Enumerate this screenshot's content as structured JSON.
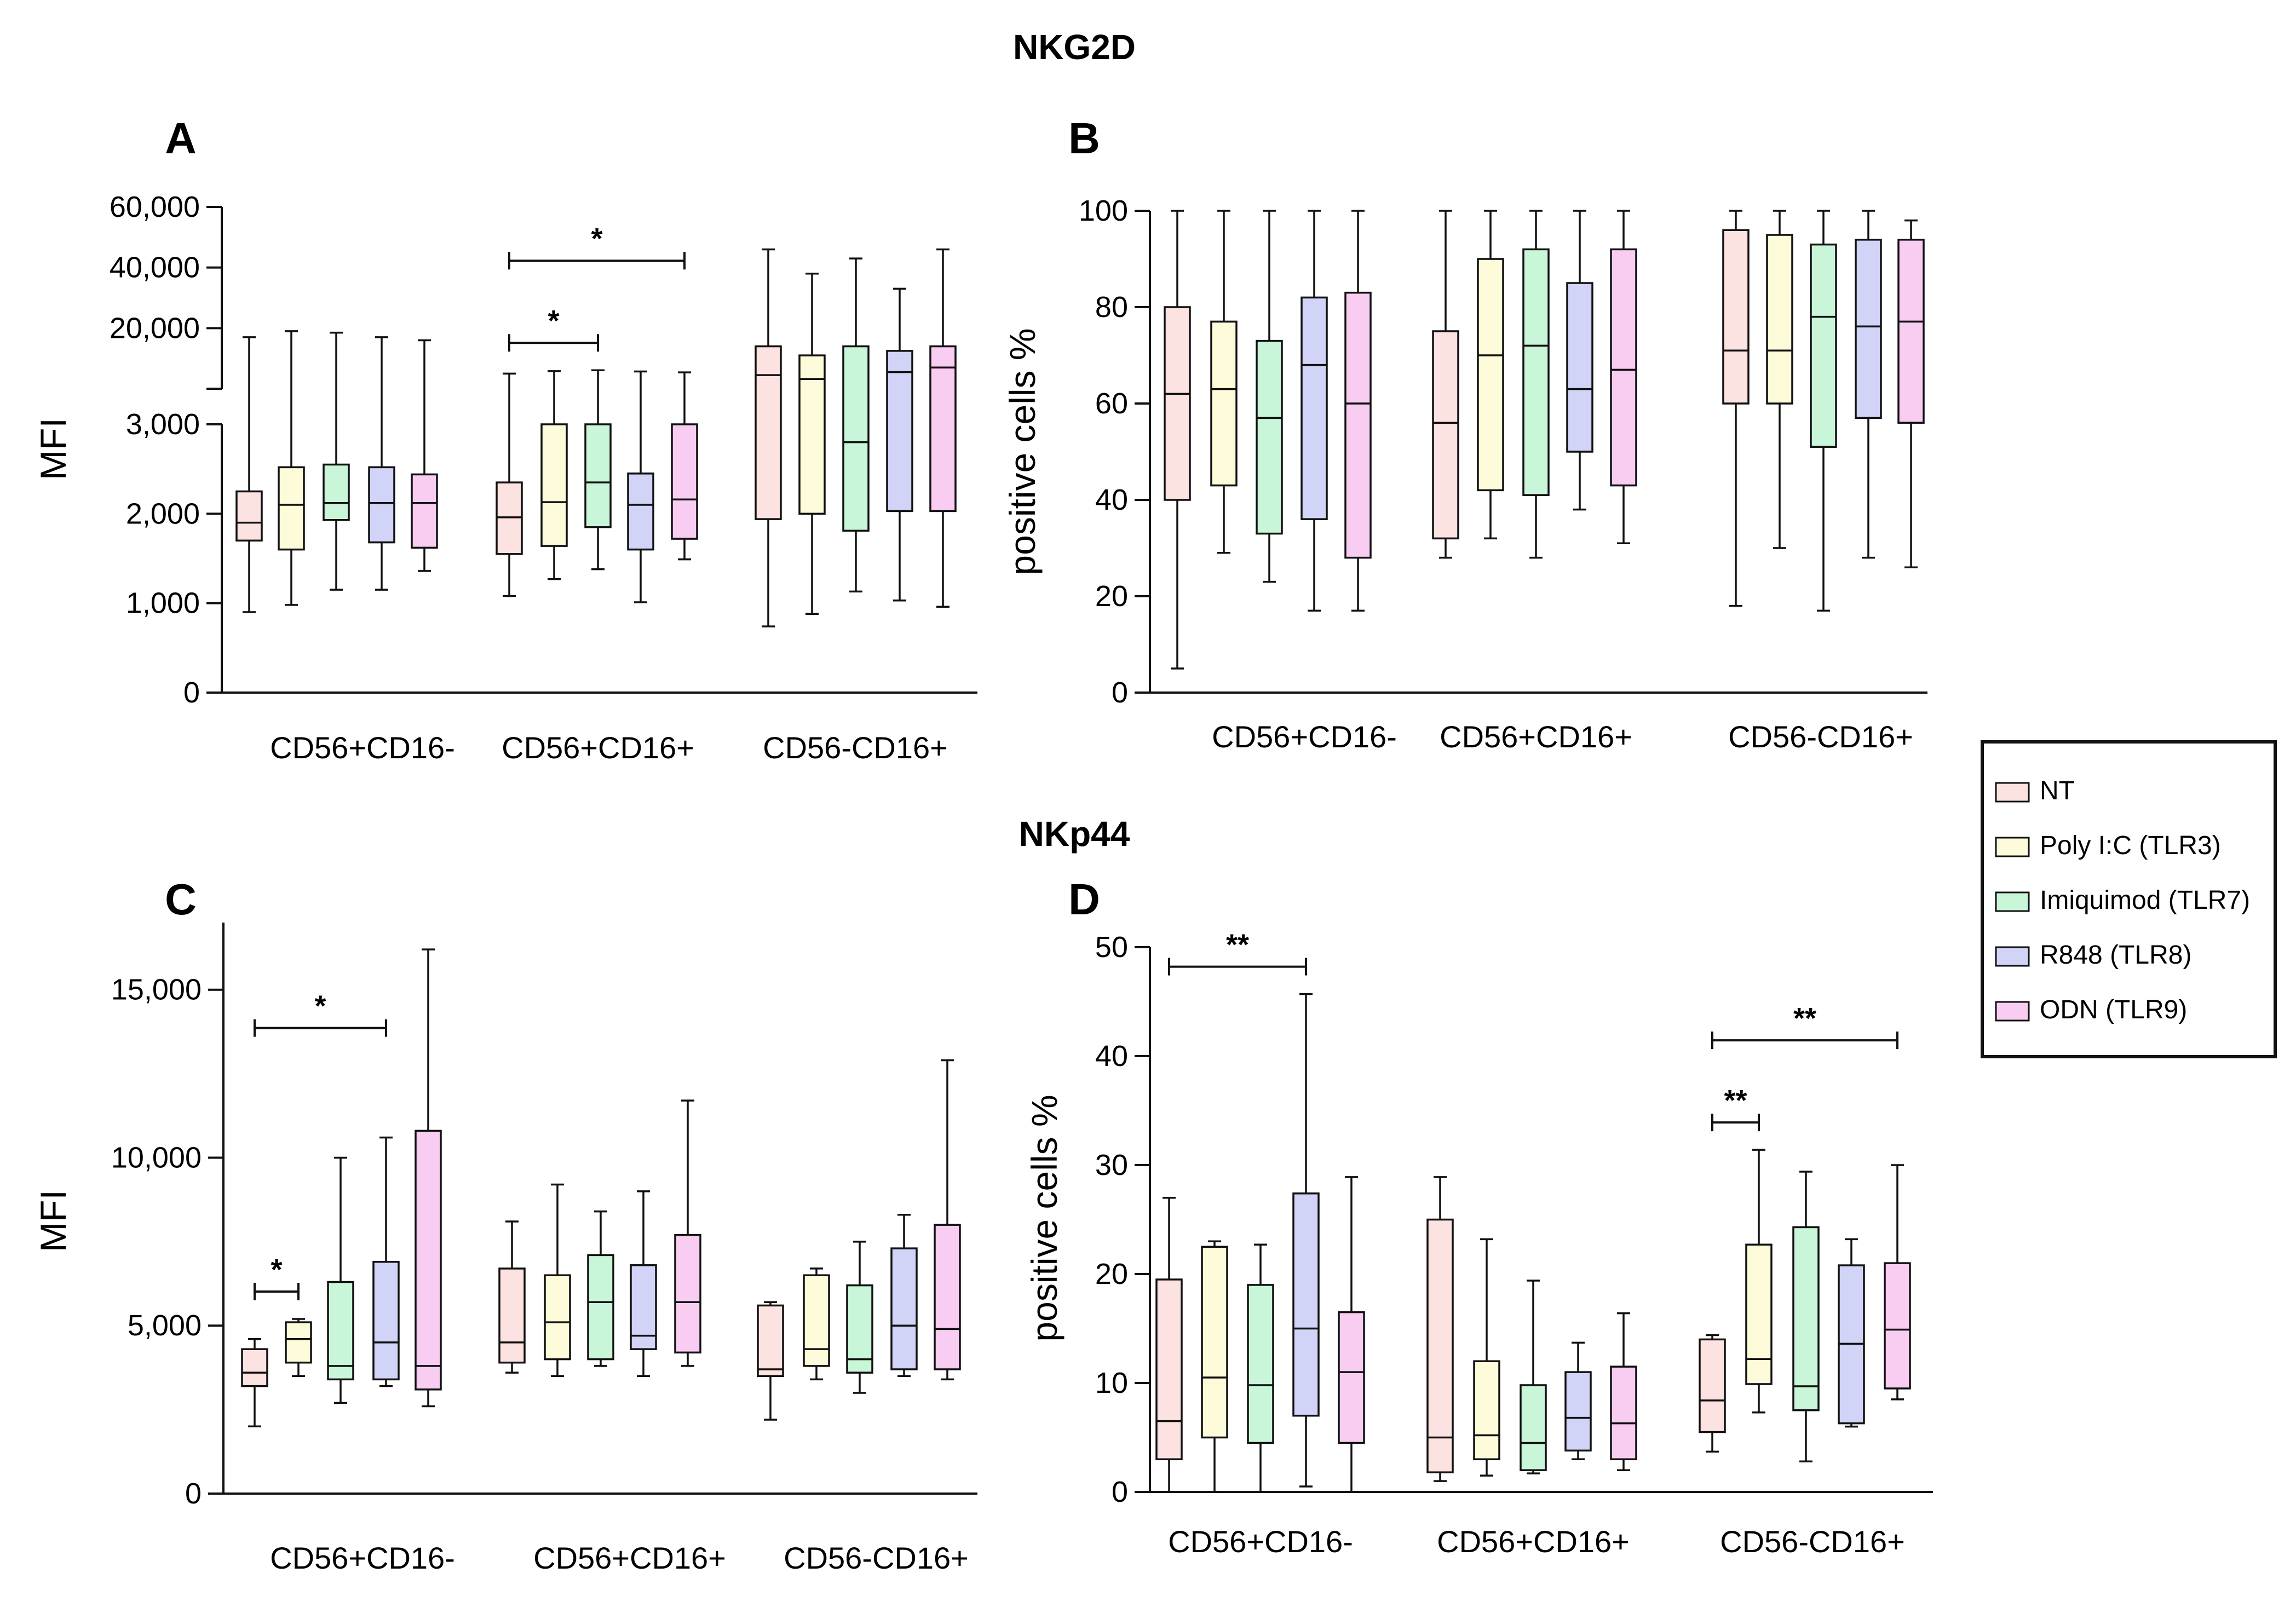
{
  "figure": {
    "titles": [
      {
        "id": "title-nkg2d",
        "text": "NKG2D"
      },
      {
        "id": "title-nkp44",
        "text": "NKp44"
      }
    ],
    "colors": {
      "NT": "#fde2e2",
      "Poly I:C (TLR3)": "#fdfbd9",
      "Imiquimod (TLR7)": "#c9f5d9",
      "R848 (TLR8)": "#d1d3f7",
      "ODN (TLR9)": "#f8cdf1"
    },
    "legend": [
      "NT",
      "Poly I:C (TLR3)",
      "Imiquimod (TLR7)",
      "R848 (TLR8)",
      "ODN (TLR9)"
    ]
  },
  "chart_data": [
    {
      "panel": "A",
      "type": "boxplot",
      "title": "NKG2D",
      "ylabel": "MFI",
      "categories": [
        "CD56+CD16-",
        "CD56+CD16+",
        "CD56-CD16+"
      ],
      "series": [
        "NT",
        "Poly I:C (TLR3)",
        "Imiquimod (TLR7)",
        "R848 (TLR8)",
        "ODN (TLR9)"
      ],
      "yaxis": {
        "broken": true,
        "lower": {
          "range": [
            0,
            3000
          ],
          "ticks": [
            0,
            1000,
            2000,
            3000
          ],
          "labels": [
            "0",
            "1,000",
            "2,000",
            "3,000"
          ]
        },
        "upper": {
          "range": [
            0,
            60000
          ],
          "ticks": [
            20000,
            40000,
            60000
          ],
          "labels": [
            "20,000",
            "40,000",
            "60,000"
          ]
        }
      },
      "boxes": [
        {
          "group": 0,
          "series": 0,
          "min": 900,
          "q1": 1700,
          "median": 1900,
          "q3": 2250,
          "max": 17000
        },
        {
          "group": 0,
          "series": 1,
          "min": 980,
          "q1": 1600,
          "median": 2100,
          "q3": 2520,
          "max": 19000
        },
        {
          "group": 0,
          "series": 2,
          "min": 1150,
          "q1": 1930,
          "median": 2120,
          "q3": 2550,
          "max": 18500
        },
        {
          "group": 0,
          "series": 3,
          "min": 1150,
          "q1": 1680,
          "median": 2120,
          "q3": 2520,
          "max": 17000
        },
        {
          "group": 0,
          "series": 4,
          "min": 1360,
          "q1": 1620,
          "median": 2120,
          "q3": 2440,
          "max": 16000
        },
        {
          "group": 1,
          "series": 0,
          "min": 1080,
          "q1": 1550,
          "median": 1960,
          "q3": 2350,
          "max": 5000
        },
        {
          "group": 1,
          "series": 1,
          "min": 1270,
          "q1": 1640,
          "median": 2130,
          "q3": 3000,
          "max": 5800
        },
        {
          "group": 1,
          "series": 2,
          "min": 1380,
          "q1": 1850,
          "median": 2350,
          "q3": 3000,
          "max": 6100
        },
        {
          "group": 1,
          "series": 3,
          "min": 1010,
          "q1": 1600,
          "median": 2100,
          "q3": 2450,
          "max": 5700
        },
        {
          "group": 1,
          "series": 4,
          "min": 1490,
          "q1": 1720,
          "median": 2160,
          "q3": 3000,
          "max": 5400
        },
        {
          "group": 2,
          "series": 0,
          "min": 740,
          "q1": 1940,
          "median": 4500,
          "q3": 14000,
          "max": 46000
        },
        {
          "group": 2,
          "series": 1,
          "min": 880,
          "q1": 2000,
          "median": 3200,
          "q3": 11000,
          "max": 38000
        },
        {
          "group": 2,
          "series": 2,
          "min": 1130,
          "q1": 1810,
          "median": 2800,
          "q3": 14000,
          "max": 43000
        },
        {
          "group": 2,
          "series": 3,
          "min": 1030,
          "q1": 2030,
          "median": 5500,
          "q3": 12500,
          "max": 33000
        },
        {
          "group": 2,
          "series": 4,
          "min": 960,
          "q1": 2030,
          "median": 7000,
          "q3": 14000,
          "max": 46000
        }
      ],
      "significance": [
        {
          "group": 1,
          "from": 0,
          "to": 2,
          "label": "*",
          "level": 1
        },
        {
          "group": 1,
          "from": 0,
          "to": 4,
          "label": "*",
          "level": 2
        }
      ]
    },
    {
      "panel": "B",
      "type": "boxplot",
      "title": "NKG2D",
      "ylabel": "positive cells %",
      "categories": [
        "CD56+CD16-",
        "CD56+CD16+",
        "CD56-CD16+"
      ],
      "series": [
        "NT",
        "Poly I:C (TLR3)",
        "Imiquimod (TLR7)",
        "R848 (TLR8)",
        "ODN (TLR9)"
      ],
      "ylim": [
        0,
        100
      ],
      "yticks": [
        0,
        20,
        40,
        60,
        80,
        100
      ],
      "boxes": [
        {
          "group": 0,
          "series": 0,
          "min": 5,
          "q1": 40,
          "median": 62,
          "q3": 80,
          "max": 100
        },
        {
          "group": 0,
          "series": 1,
          "min": 29,
          "q1": 43,
          "median": 63,
          "q3": 77,
          "max": 100
        },
        {
          "group": 0,
          "series": 2,
          "min": 23,
          "q1": 33,
          "median": 57,
          "q3": 73,
          "max": 100
        },
        {
          "group": 0,
          "series": 3,
          "min": 17,
          "q1": 36,
          "median": 68,
          "q3": 82,
          "max": 100
        },
        {
          "group": 0,
          "series": 4,
          "min": 17,
          "q1": 28,
          "median": 60,
          "q3": 83,
          "max": 100
        },
        {
          "group": 1,
          "series": 0,
          "min": 28,
          "q1": 32,
          "median": 56,
          "q3": 75,
          "max": 100
        },
        {
          "group": 1,
          "series": 1,
          "min": 32,
          "q1": 42,
          "median": 70,
          "q3": 90,
          "max": 100
        },
        {
          "group": 1,
          "series": 2,
          "min": 28,
          "q1": 41,
          "median": 72,
          "q3": 92,
          "max": 100
        },
        {
          "group": 1,
          "series": 3,
          "min": 38,
          "q1": 50,
          "median": 63,
          "q3": 85,
          "max": 100
        },
        {
          "group": 1,
          "series": 4,
          "min": 31,
          "q1": 43,
          "median": 67,
          "q3": 92,
          "max": 100
        },
        {
          "group": 2,
          "series": 0,
          "min": 18,
          "q1": 60,
          "median": 71,
          "q3": 96,
          "max": 100
        },
        {
          "group": 2,
          "series": 1,
          "min": 30,
          "q1": 60,
          "median": 71,
          "q3": 95,
          "max": 100
        },
        {
          "group": 2,
          "series": 2,
          "min": 17,
          "q1": 51,
          "median": 78,
          "q3": 93,
          "max": 100
        },
        {
          "group": 2,
          "series": 3,
          "min": 28,
          "q1": 57,
          "median": 76,
          "q3": 94,
          "max": 100
        },
        {
          "group": 2,
          "series": 4,
          "min": 26,
          "q1": 56,
          "median": 77,
          "q3": 94,
          "max": 98
        }
      ],
      "significance": []
    },
    {
      "panel": "C",
      "type": "boxplot",
      "title": "NKp44",
      "ylabel": "MFI",
      "categories": [
        "CD56+CD16-",
        "CD56+CD16+",
        "CD56-CD16+"
      ],
      "series": [
        "NT",
        "Poly I:C (TLR3)",
        "Imiquimod (TLR7)",
        "R848 (TLR8)",
        "ODN (TLR9)"
      ],
      "ylim": [
        0,
        17000
      ],
      "yticks": [
        0,
        5000,
        10000,
        15000
      ],
      "yticklabels": [
        "0",
        "5,000",
        "10,000",
        "15,000"
      ],
      "boxes": [
        {
          "group": 0,
          "series": 0,
          "min": 2000,
          "q1": 3200,
          "median": 3600,
          "q3": 4300,
          "max": 4600
        },
        {
          "group": 0,
          "series": 1,
          "min": 3500,
          "q1": 3900,
          "median": 4600,
          "q3": 5100,
          "max": 5200
        },
        {
          "group": 0,
          "series": 2,
          "min": 2700,
          "q1": 3400,
          "median": 3800,
          "q3": 6300,
          "max": 10000
        },
        {
          "group": 0,
          "series": 3,
          "min": 3200,
          "q1": 3400,
          "median": 4500,
          "q3": 6900,
          "max": 10600
        },
        {
          "group": 0,
          "series": 4,
          "min": 2600,
          "q1": 3100,
          "median": 3800,
          "q3": 10800,
          "max": 16200
        },
        {
          "group": 1,
          "series": 0,
          "min": 3600,
          "q1": 3900,
          "median": 4500,
          "q3": 6700,
          "max": 8100
        },
        {
          "group": 1,
          "series": 1,
          "min": 3500,
          "q1": 4000,
          "median": 5100,
          "q3": 6500,
          "max": 9200
        },
        {
          "group": 1,
          "series": 2,
          "min": 3800,
          "q1": 4000,
          "median": 5700,
          "q3": 7100,
          "max": 8400
        },
        {
          "group": 1,
          "series": 3,
          "min": 3500,
          "q1": 4300,
          "median": 4700,
          "q3": 6800,
          "max": 9000
        },
        {
          "group": 1,
          "series": 4,
          "min": 3800,
          "q1": 4200,
          "median": 5700,
          "q3": 7700,
          "max": 11700
        },
        {
          "group": 2,
          "series": 0,
          "min": 2200,
          "q1": 3500,
          "median": 3700,
          "q3": 5600,
          "max": 5700
        },
        {
          "group": 2,
          "series": 1,
          "min": 3400,
          "q1": 3800,
          "median": 4300,
          "q3": 6500,
          "max": 6700
        },
        {
          "group": 2,
          "series": 2,
          "min": 3000,
          "q1": 3600,
          "median": 4000,
          "q3": 6200,
          "max": 7500
        },
        {
          "group": 2,
          "series": 3,
          "min": 3500,
          "q1": 3700,
          "median": 5000,
          "q3": 7300,
          "max": 8300
        },
        {
          "group": 2,
          "series": 4,
          "min": 3400,
          "q1": 3700,
          "median": 4900,
          "q3": 8000,
          "max": 12900
        }
      ],
      "significance": [
        {
          "group": 0,
          "from": 0,
          "to": 1,
          "label": "*",
          "level": 1
        },
        {
          "group": 0,
          "from": 0,
          "to": 3,
          "label": "*",
          "level": 2
        }
      ]
    },
    {
      "panel": "D",
      "type": "boxplot",
      "title": "NKp44",
      "ylabel": "positive cells %",
      "categories": [
        "CD56+CD16-",
        "CD56+CD16+",
        "CD56-CD16+"
      ],
      "series": [
        "NT",
        "Poly I:C (TLR3)",
        "Imiquimod (TLR7)",
        "R848 (TLR8)",
        "ODN (TLR9)"
      ],
      "ylim": [
        0,
        50
      ],
      "yticks": [
        0,
        10,
        20,
        30,
        40,
        50
      ],
      "boxes": [
        {
          "group": 0,
          "series": 0,
          "min": 0,
          "q1": 3,
          "median": 6.5,
          "q3": 19.5,
          "max": 27
        },
        {
          "group": 0,
          "series": 1,
          "min": 0,
          "q1": 5,
          "median": 10.5,
          "q3": 22.5,
          "max": 23
        },
        {
          "group": 0,
          "series": 2,
          "min": 0,
          "q1": 4.5,
          "median": 9.8,
          "q3": 19,
          "max": 22.7
        },
        {
          "group": 0,
          "series": 3,
          "min": 0.5,
          "q1": 7,
          "median": 15,
          "q3": 27.4,
          "max": 45.7
        },
        {
          "group": 0,
          "series": 4,
          "min": 0,
          "q1": 4.5,
          "median": 11,
          "q3": 16.5,
          "max": 28.9
        },
        {
          "group": 1,
          "series": 0,
          "min": 1,
          "q1": 1.8,
          "median": 5,
          "q3": 25,
          "max": 28.9
        },
        {
          "group": 1,
          "series": 1,
          "min": 1.5,
          "q1": 3,
          "median": 5.2,
          "q3": 12,
          "max": 23.2
        },
        {
          "group": 1,
          "series": 2,
          "min": 1.7,
          "q1": 2,
          "median": 4.5,
          "q3": 9.8,
          "max": 19.4
        },
        {
          "group": 1,
          "series": 3,
          "min": 3,
          "q1": 3.8,
          "median": 6.8,
          "q3": 11,
          "max": 13.7
        },
        {
          "group": 1,
          "series": 4,
          "min": 2,
          "q1": 3,
          "median": 6.3,
          "q3": 11.5,
          "max": 16.4
        },
        {
          "group": 2,
          "series": 0,
          "min": 3.7,
          "q1": 5.5,
          "median": 8.4,
          "q3": 14,
          "max": 14.4
        },
        {
          "group": 2,
          "series": 1,
          "min": 7.3,
          "q1": 9.9,
          "median": 12.2,
          "q3": 22.7,
          "max": 31.4
        },
        {
          "group": 2,
          "series": 2,
          "min": 2.8,
          "q1": 7.5,
          "median": 9.7,
          "q3": 24.3,
          "max": 29.4
        },
        {
          "group": 2,
          "series": 3,
          "min": 6,
          "q1": 6.3,
          "median": 13.6,
          "q3": 20.8,
          "max": 23.2
        },
        {
          "group": 2,
          "series": 4,
          "min": 8.5,
          "q1": 9.5,
          "median": 14.9,
          "q3": 21,
          "max": 30
        }
      ],
      "significance": [
        {
          "group": 0,
          "from": 0,
          "to": 3,
          "label": "**",
          "level": 1
        },
        {
          "group": 2,
          "from": 0,
          "to": 1,
          "label": "**",
          "level": 1
        },
        {
          "group": 2,
          "from": 0,
          "to": 4,
          "label": "**",
          "level": 2
        }
      ]
    }
  ]
}
